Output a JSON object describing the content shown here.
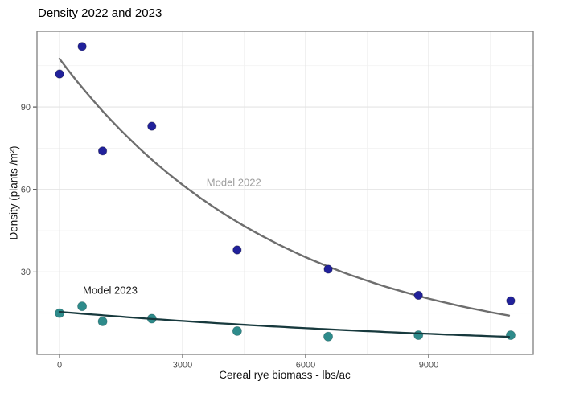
{
  "chart_data": {
    "type": "scatter",
    "title": "Density 2022 and 2023",
    "xlabel": "Cereal rye biomass - lbs/ac",
    "ylabel": "Density (plants /m²)",
    "xlim": [
      -550,
      11550
    ],
    "ylim": [
      0,
      117.5
    ],
    "x_major_ticks": [
      0,
      3000,
      6000,
      9000
    ],
    "x_minor_ticks": [
      1500,
      4500,
      7500,
      10500
    ],
    "y_major_ticks": [
      30,
      60,
      90
    ],
    "y_minor_ticks": [
      15,
      45,
      75,
      105
    ],
    "grid": "major+minor",
    "legend": "none",
    "x": [
      0,
      550,
      1050,
      2250,
      4330,
      6550,
      8750,
      11000
    ],
    "series": [
      {
        "name": "2022",
        "point_color": "#21219b",
        "values": [
          102,
          112,
          74,
          83,
          38,
          31,
          21.5,
          19.5
        ]
      },
      {
        "name": "2023",
        "point_color": "#2e8b8b",
        "values": [
          15,
          17.5,
          12,
          13,
          8.5,
          6.5,
          7,
          7
        ]
      }
    ],
    "models": [
      {
        "label": "Model 2022",
        "curve_color": "#6e6e6e",
        "label_color": "#9e9e9e",
        "start_y": 107.5,
        "decay_constant": 5400,
        "x_start": 0,
        "x_end": 10960,
        "label_at": [
          4250,
          62.5
        ]
      },
      {
        "label": "Model 2023",
        "curve_color": "#17393d",
        "label_color": "#1a1a1a",
        "start_y": 15.5,
        "decay_constant": 12400,
        "x_start": 0,
        "x_end": 10960,
        "label_at": [
          1235,
          23.5
        ]
      }
    ],
    "colors": {
      "grid_major": "#e4e4e4",
      "grid_minor": "#f1f1f1",
      "panel_border": "#808080",
      "axis_text": "#4d4d4d",
      "tick": "#333333",
      "title": "#000000"
    }
  }
}
